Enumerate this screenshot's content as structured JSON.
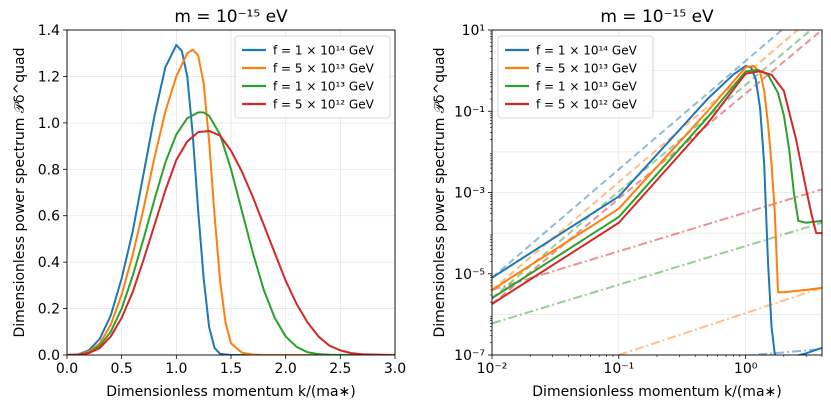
{
  "chart_data": [
    {
      "type": "line",
      "title": "m = 10⁻¹⁵ eV",
      "xlabel": "Dimensionless momentum k/(ma∗)",
      "ylabel": "Dimensionless power spectrum 𝒫δ^quad",
      "xscale": "linear",
      "yscale": "linear",
      "xlim": [
        0.0,
        3.0
      ],
      "ylim": [
        0.0,
        1.4
      ],
      "xticks": [
        "0.0",
        "0.5",
        "1.0",
        "1.5",
        "2.0",
        "2.5",
        "3.0"
      ],
      "yticks": [
        "0.0",
        "0.2",
        "0.4",
        "0.6",
        "0.8",
        "1.0",
        "1.2",
        "1.4"
      ],
      "grid": true,
      "legend_position": "top-right",
      "series": [
        {
          "name": "f = 1 × 10¹⁴ GeV",
          "color": "#1f77b4",
          "x": [
            0.0,
            0.1,
            0.2,
            0.3,
            0.4,
            0.5,
            0.6,
            0.7,
            0.8,
            0.9,
            1.0,
            1.05,
            1.1,
            1.15,
            1.2,
            1.25,
            1.3,
            1.35,
            1.4,
            1.5,
            1.6,
            3.0
          ],
          "y": [
            0.0,
            0.002,
            0.02,
            0.07,
            0.17,
            0.33,
            0.53,
            0.78,
            1.03,
            1.24,
            1.335,
            1.31,
            1.2,
            0.95,
            0.62,
            0.33,
            0.12,
            0.03,
            0.005,
            0.0,
            0.0,
            0.0
          ]
        },
        {
          "name": "f = 5 × 10¹³ GeV",
          "color": "#ff7f0e",
          "x": [
            0.0,
            0.1,
            0.2,
            0.3,
            0.4,
            0.5,
            0.6,
            0.7,
            0.8,
            0.9,
            1.0,
            1.1,
            1.15,
            1.2,
            1.25,
            1.3,
            1.35,
            1.4,
            1.45,
            1.5,
            1.6,
            1.7,
            1.8,
            3.0
          ],
          "y": [
            0.0,
            0.001,
            0.015,
            0.05,
            0.13,
            0.26,
            0.43,
            0.63,
            0.85,
            1.05,
            1.2,
            1.3,
            1.315,
            1.29,
            1.17,
            0.92,
            0.6,
            0.32,
            0.14,
            0.05,
            0.01,
            0.002,
            0.0,
            0.0
          ]
        },
        {
          "name": "f = 1 × 10¹³ GeV",
          "color": "#2ca02c",
          "x": [
            0.0,
            0.1,
            0.2,
            0.3,
            0.4,
            0.5,
            0.6,
            0.7,
            0.8,
            0.9,
            1.0,
            1.1,
            1.2,
            1.25,
            1.3,
            1.4,
            1.5,
            1.6,
            1.7,
            1.8,
            1.9,
            2.0,
            2.1,
            2.2,
            2.3,
            2.4,
            3.0
          ],
          "y": [
            0.0,
            0.001,
            0.01,
            0.04,
            0.1,
            0.2,
            0.34,
            0.5,
            0.67,
            0.83,
            0.95,
            1.02,
            1.045,
            1.045,
            1.03,
            0.95,
            0.8,
            0.62,
            0.44,
            0.28,
            0.16,
            0.08,
            0.035,
            0.012,
            0.004,
            0.001,
            0.0
          ]
        },
        {
          "name": "f = 5 × 10¹² GeV",
          "color": "#d62728",
          "x": [
            0.0,
            0.1,
            0.2,
            0.3,
            0.4,
            0.5,
            0.6,
            0.7,
            0.8,
            0.9,
            1.0,
            1.1,
            1.2,
            1.3,
            1.4,
            1.5,
            1.6,
            1.7,
            1.8,
            1.9,
            2.0,
            2.1,
            2.2,
            2.3,
            2.4,
            2.5,
            2.6,
            2.7,
            3.0
          ],
          "y": [
            0.0,
            0.001,
            0.008,
            0.03,
            0.08,
            0.16,
            0.27,
            0.41,
            0.56,
            0.71,
            0.84,
            0.92,
            0.96,
            0.965,
            0.945,
            0.88,
            0.79,
            0.68,
            0.56,
            0.44,
            0.32,
            0.22,
            0.14,
            0.08,
            0.04,
            0.02,
            0.008,
            0.003,
            0.0
          ]
        }
      ]
    },
    {
      "type": "line",
      "title": "m = 10⁻¹⁵ eV",
      "xlabel": "Dimensionless momentum k/(ma∗)",
      "ylabel": "Dimensionless power spectrum 𝒫δ^quad",
      "xscale": "log",
      "yscale": "log",
      "xlim": [
        0.01,
        4.0
      ],
      "ylim": [
        1e-07,
        10
      ],
      "xticks": [
        {
          "value": 0.01,
          "label": "10⁻²"
        },
        {
          "value": 0.1,
          "label": "10⁻¹"
        },
        {
          "value": 1,
          "label": "10⁰"
        }
      ],
      "yticks": [
        {
          "value": 1e-07,
          "label": "10⁻⁷"
        },
        {
          "value": 1e-05,
          "label": "10⁻⁵"
        },
        {
          "value": 0.001,
          "label": "10⁻³"
        },
        {
          "value": 0.1,
          "label": "10⁻¹"
        },
        {
          "value": 10,
          "label": "10¹"
        }
      ],
      "grid": true,
      "legend_position": "top-left",
      "series": [
        {
          "name": "f = 1 × 10¹⁴ GeV",
          "color": "#1f77b4",
          "x": [
            0.01,
            0.1,
            0.5,
            0.8,
            1.0,
            1.1,
            1.2,
            1.3,
            1.4,
            1.5,
            1.6,
            1.7,
            2.0,
            3.0,
            4.0
          ],
          "y": [
            8e-06,
            0.0008,
            0.2,
            0.8,
            1.3,
            1.2,
            0.62,
            0.12,
            0.005,
            2e-05,
            5e-07,
            1e-07,
            8e-08,
            1.1e-07,
            1.5e-07
          ]
        },
        {
          "name": "f = 5 × 10¹³ GeV",
          "color": "#ff7f0e",
          "x": [
            0.01,
            0.1,
            0.5,
            1.0,
            1.15,
            1.3,
            1.4,
            1.5,
            1.6,
            1.7,
            1.8,
            2.0,
            3.0,
            4.0
          ],
          "y": [
            4e-06,
            0.0004,
            0.1,
            1.2,
            1.31,
            0.92,
            0.32,
            0.05,
            0.005,
            0.0003,
            3.5e-06,
            3.5e-06,
            4e-06,
            4.5e-06
          ]
        },
        {
          "name": "f = 1 × 10¹³ GeV",
          "color": "#2ca02c",
          "x": [
            0.01,
            0.1,
            0.5,
            1.0,
            1.25,
            1.5,
            1.8,
            2.0,
            2.2,
            2.4,
            2.6,
            3.0,
            4.0
          ],
          "y": [
            2.5e-06,
            0.00025,
            0.07,
            0.95,
            1.045,
            0.8,
            0.28,
            0.08,
            0.012,
            0.001,
            0.0002,
            0.00018,
            0.0002
          ]
        },
        {
          "name": "f = 5 × 10¹² GeV",
          "color": "#d62728",
          "x": [
            0.01,
            0.1,
            0.5,
            1.0,
            1.3,
            1.6,
            2.0,
            2.5,
            3.0,
            3.3,
            3.6,
            4.0
          ],
          "y": [
            1.8e-06,
            0.00018,
            0.05,
            0.84,
            0.965,
            0.79,
            0.32,
            0.02,
            0.0012,
            0.0003,
            0.0001,
            0.0001
          ]
        }
      ],
      "reference_lines": [
        {
          "color": "#1f77b4",
          "style": "dashed",
          "x": [
            0.01,
            2.5
          ],
          "y": [
            8e-06,
            20
          ]
        },
        {
          "color": "#ff7f0e",
          "style": "dashed",
          "x": [
            0.01,
            3.0
          ],
          "y": [
            4e-06,
            15
          ]
        },
        {
          "color": "#2ca02c",
          "style": "dashed",
          "x": [
            0.01,
            3.5
          ],
          "y": [
            2.5e-06,
            12
          ]
        },
        {
          "color": "#d62728",
          "style": "dashed",
          "x": [
            0.01,
            4.0
          ],
          "y": [
            1.8e-06,
            10
          ]
        },
        {
          "color": "#1f77b4",
          "style": "dashdot",
          "x": [
            0.5,
            4.0
          ],
          "y": [
            8e-08,
            1.4e-07
          ]
        },
        {
          "color": "#ff7f0e",
          "style": "dashdot",
          "x": [
            0.1,
            4.0
          ],
          "y": [
            1e-07,
            4.5e-06
          ]
        },
        {
          "color": "#2ca02c",
          "style": "dashdot",
          "x": [
            0.01,
            4.0
          ],
          "y": [
            6e-07,
            0.00018
          ]
        },
        {
          "color": "#d62728",
          "style": "dashdot",
          "x": [
            0.01,
            4.0
          ],
          "y": [
            4e-06,
            0.0012
          ]
        }
      ]
    }
  ]
}
